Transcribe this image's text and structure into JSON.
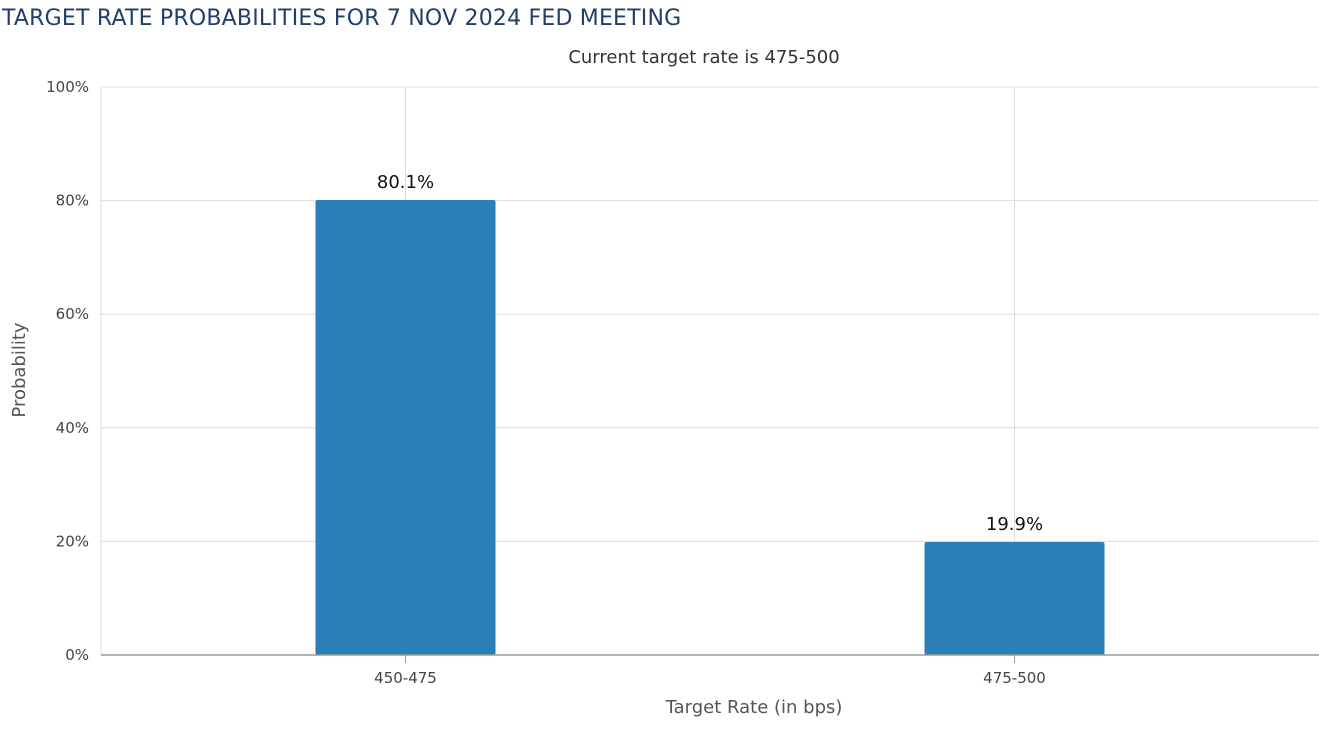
{
  "page": {
    "title": "TARGET RATE PROBABILITIES FOR 7 NOV 2024 FED MEETING"
  },
  "chart_data": {
    "type": "bar",
    "title": "",
    "subtitle": "Current target rate is 475-500",
    "xlabel": "Target Rate (in bps)",
    "ylabel": "Probability",
    "categories": [
      "450-475",
      "475-500"
    ],
    "series": [
      {
        "values": [
          80.1,
          19.9
        ]
      }
    ],
    "data_labels": [
      "80.1%",
      "19.9%"
    ],
    "ylim": [
      0,
      100
    ],
    "yticks": [
      0,
      20,
      40,
      60,
      80,
      100
    ],
    "ytick_labels": [
      "0%",
      "20%",
      "40%",
      "60%",
      "80%",
      "100%"
    ],
    "grid": true,
    "legend": "none",
    "bar_color": "#2a7fb8"
  }
}
